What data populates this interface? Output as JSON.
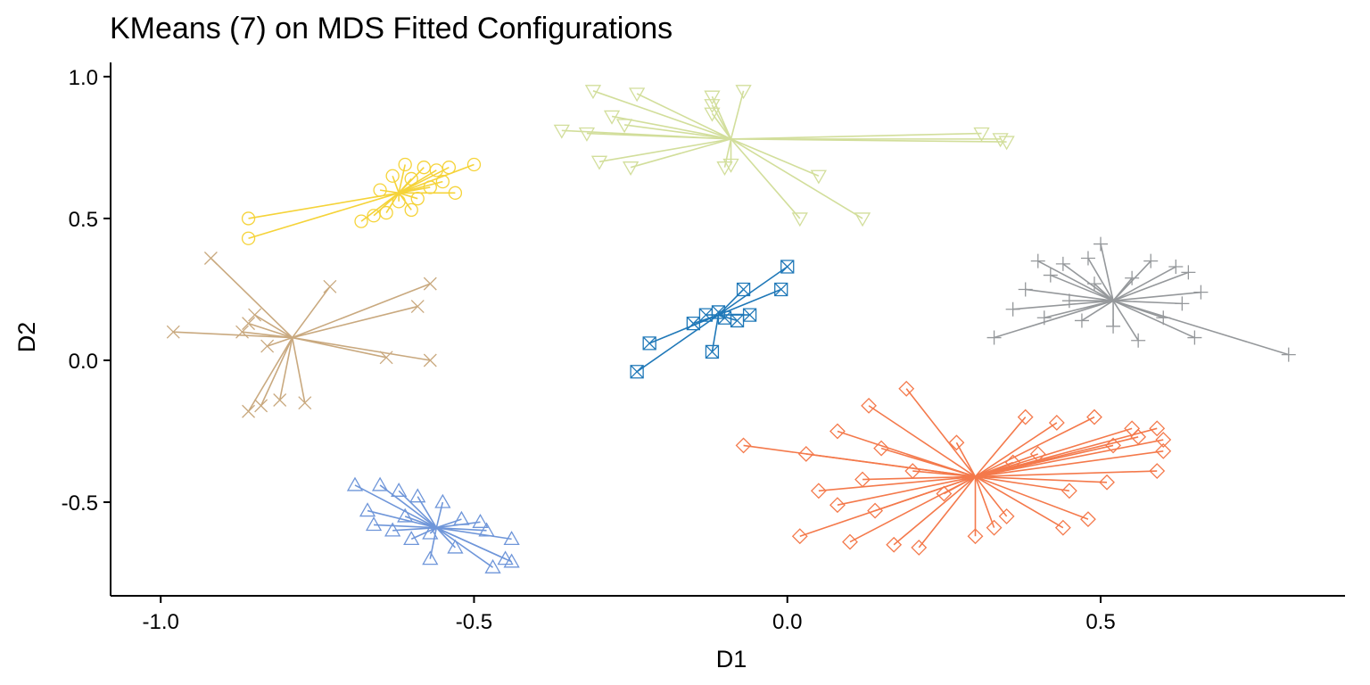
{
  "chart_data": {
    "type": "scatter",
    "title": "KMeans (7) on MDS Fitted Configurations",
    "xlabel": "D1",
    "ylabel": "D2",
    "xlim": [
      -1.08,
      0.89
    ],
    "ylim": [
      -0.83,
      1.05
    ],
    "x_ticks": [
      -1.0,
      -0.5,
      0.0,
      0.5
    ],
    "x_tick_labels": [
      "-1.0",
      "-0.5",
      "0.0",
      "0.5"
    ],
    "y_ticks": [
      -0.5,
      0.0,
      0.5,
      1.0
    ],
    "y_tick_labels": [
      "-0.5",
      "0.0",
      "0.5",
      "1.0"
    ],
    "grid": false,
    "legend": "none",
    "clusters": [
      {
        "color": "#D2DE9B",
        "marker": "triangle-down",
        "center": [
          -0.09,
          0.78
        ],
        "points": [
          [
            -0.31,
            0.95
          ],
          [
            -0.24,
            0.94
          ],
          [
            -0.12,
            0.93
          ],
          [
            -0.12,
            0.9
          ],
          [
            -0.07,
            0.95
          ],
          [
            -0.28,
            0.86
          ],
          [
            -0.26,
            0.83
          ],
          [
            -0.36,
            0.81
          ],
          [
            -0.32,
            0.8
          ],
          [
            -0.12,
            0.87
          ],
          [
            -0.3,
            0.7
          ],
          [
            -0.25,
            0.68
          ],
          [
            -0.1,
            0.68
          ],
          [
            0.05,
            0.65
          ],
          [
            0.02,
            0.5
          ],
          [
            0.12,
            0.5
          ],
          [
            0.31,
            0.8
          ],
          [
            0.34,
            0.78
          ],
          [
            0.35,
            0.77
          ],
          [
            -0.09,
            0.69
          ]
        ]
      },
      {
        "color": "#F5D339",
        "marker": "circle",
        "center": [
          -0.62,
          0.59
        ],
        "points": [
          [
            -0.86,
            0.5
          ],
          [
            -0.86,
            0.43
          ],
          [
            -0.68,
            0.49
          ],
          [
            -0.66,
            0.51
          ],
          [
            -0.64,
            0.52
          ],
          [
            -0.6,
            0.53
          ],
          [
            -0.63,
            0.65
          ],
          [
            -0.61,
            0.69
          ],
          [
            -0.58,
            0.68
          ],
          [
            -0.56,
            0.67
          ],
          [
            -0.54,
            0.68
          ],
          [
            -0.5,
            0.69
          ],
          [
            -0.53,
            0.59
          ],
          [
            -0.57,
            0.61
          ],
          [
            -0.6,
            0.64
          ],
          [
            -0.65,
            0.6
          ],
          [
            -0.62,
            0.56
          ],
          [
            -0.59,
            0.57
          ],
          [
            -0.55,
            0.63
          ]
        ]
      },
      {
        "color": "#C9A97F",
        "marker": "x",
        "center": [
          -0.79,
          0.08
        ],
        "points": [
          [
            -0.92,
            0.36
          ],
          [
            -0.73,
            0.26
          ],
          [
            -0.98,
            0.1
          ],
          [
            -0.85,
            0.16
          ],
          [
            -0.86,
            0.13
          ],
          [
            -0.87,
            0.1
          ],
          [
            -0.83,
            0.05
          ],
          [
            -0.57,
            0.27
          ],
          [
            -0.59,
            0.19
          ],
          [
            -0.64,
            0.01
          ],
          [
            -0.57,
            0.0
          ],
          [
            -0.86,
            -0.18
          ],
          [
            -0.84,
            -0.16
          ],
          [
            -0.81,
            -0.14
          ],
          [
            -0.77,
            -0.15
          ]
        ]
      },
      {
        "color": "#1F78B8",
        "marker": "square-x",
        "center": [
          -0.11,
          0.16
        ],
        "points": [
          [
            -0.24,
            -0.04
          ],
          [
            -0.22,
            0.06
          ],
          [
            -0.15,
            0.13
          ],
          [
            -0.13,
            0.16
          ],
          [
            -0.11,
            0.17
          ],
          [
            -0.1,
            0.15
          ],
          [
            -0.08,
            0.14
          ],
          [
            -0.06,
            0.16
          ],
          [
            -0.07,
            0.25
          ],
          [
            -0.01,
            0.25
          ],
          [
            0.0,
            0.33
          ],
          [
            -0.12,
            0.03
          ]
        ]
      },
      {
        "color": "#95989B",
        "marker": "plus",
        "center": [
          0.52,
          0.21
        ],
        "points": [
          [
            0.5,
            0.41
          ],
          [
            0.4,
            0.35
          ],
          [
            0.44,
            0.34
          ],
          [
            0.48,
            0.36
          ],
          [
            0.58,
            0.35
          ],
          [
            0.62,
            0.33
          ],
          [
            0.64,
            0.31
          ],
          [
            0.66,
            0.24
          ],
          [
            0.63,
            0.2
          ],
          [
            0.6,
            0.15
          ],
          [
            0.65,
            0.08
          ],
          [
            0.56,
            0.07
          ],
          [
            0.52,
            0.12
          ],
          [
            0.47,
            0.14
          ],
          [
            0.45,
            0.21
          ],
          [
            0.38,
            0.25
          ],
          [
            0.42,
            0.3
          ],
          [
            0.36,
            0.18
          ],
          [
            0.33,
            0.08
          ],
          [
            0.41,
            0.15
          ],
          [
            0.8,
            0.02
          ],
          [
            0.55,
            0.29
          ],
          [
            0.49,
            0.27
          ]
        ]
      },
      {
        "color": "#F4794B",
        "marker": "diamond",
        "center": [
          0.3,
          -0.41
        ],
        "points": [
          [
            0.19,
            -0.1
          ],
          [
            0.13,
            -0.16
          ],
          [
            0.08,
            -0.25
          ],
          [
            -0.07,
            -0.3
          ],
          [
            0.03,
            -0.33
          ],
          [
            0.15,
            -0.31
          ],
          [
            0.27,
            -0.29
          ],
          [
            0.38,
            -0.2
          ],
          [
            0.43,
            -0.22
          ],
          [
            0.49,
            -0.2
          ],
          [
            0.55,
            -0.24
          ],
          [
            0.59,
            -0.24
          ],
          [
            0.6,
            -0.28
          ],
          [
            0.6,
            -0.32
          ],
          [
            0.59,
            -0.39
          ],
          [
            0.51,
            -0.43
          ],
          [
            0.45,
            -0.46
          ],
          [
            0.48,
            -0.56
          ],
          [
            0.44,
            -0.59
          ],
          [
            0.35,
            -0.55
          ],
          [
            0.33,
            -0.59
          ],
          [
            0.3,
            -0.62
          ],
          [
            0.21,
            -0.66
          ],
          [
            0.17,
            -0.65
          ],
          [
            0.1,
            -0.64
          ],
          [
            0.02,
            -0.62
          ],
          [
            0.08,
            -0.51
          ],
          [
            0.05,
            -0.46
          ],
          [
            0.12,
            -0.42
          ],
          [
            0.2,
            -0.39
          ],
          [
            0.36,
            -0.36
          ],
          [
            0.4,
            -0.33
          ],
          [
            0.52,
            -0.3
          ],
          [
            0.56,
            -0.27
          ],
          [
            0.25,
            -0.47
          ],
          [
            0.14,
            -0.53
          ]
        ]
      },
      {
        "color": "#6F96D9",
        "marker": "triangle-up",
        "center": [
          -0.56,
          -0.59
        ],
        "points": [
          [
            -0.69,
            -0.44
          ],
          [
            -0.65,
            -0.44
          ],
          [
            -0.62,
            -0.46
          ],
          [
            -0.59,
            -0.48
          ],
          [
            -0.55,
            -0.5
          ],
          [
            -0.52,
            -0.56
          ],
          [
            -0.49,
            -0.57
          ],
          [
            -0.48,
            -0.6
          ],
          [
            -0.44,
            -0.63
          ],
          [
            -0.45,
            -0.7
          ],
          [
            -0.44,
            -0.71
          ],
          [
            -0.47,
            -0.73
          ],
          [
            -0.53,
            -0.66
          ],
          [
            -0.57,
            -0.7
          ],
          [
            -0.6,
            -0.63
          ],
          [
            -0.63,
            -0.6
          ],
          [
            -0.66,
            -0.58
          ],
          [
            -0.67,
            -0.53
          ],
          [
            -0.61,
            -0.55
          ],
          [
            -0.57,
            -0.61
          ]
        ]
      }
    ]
  }
}
